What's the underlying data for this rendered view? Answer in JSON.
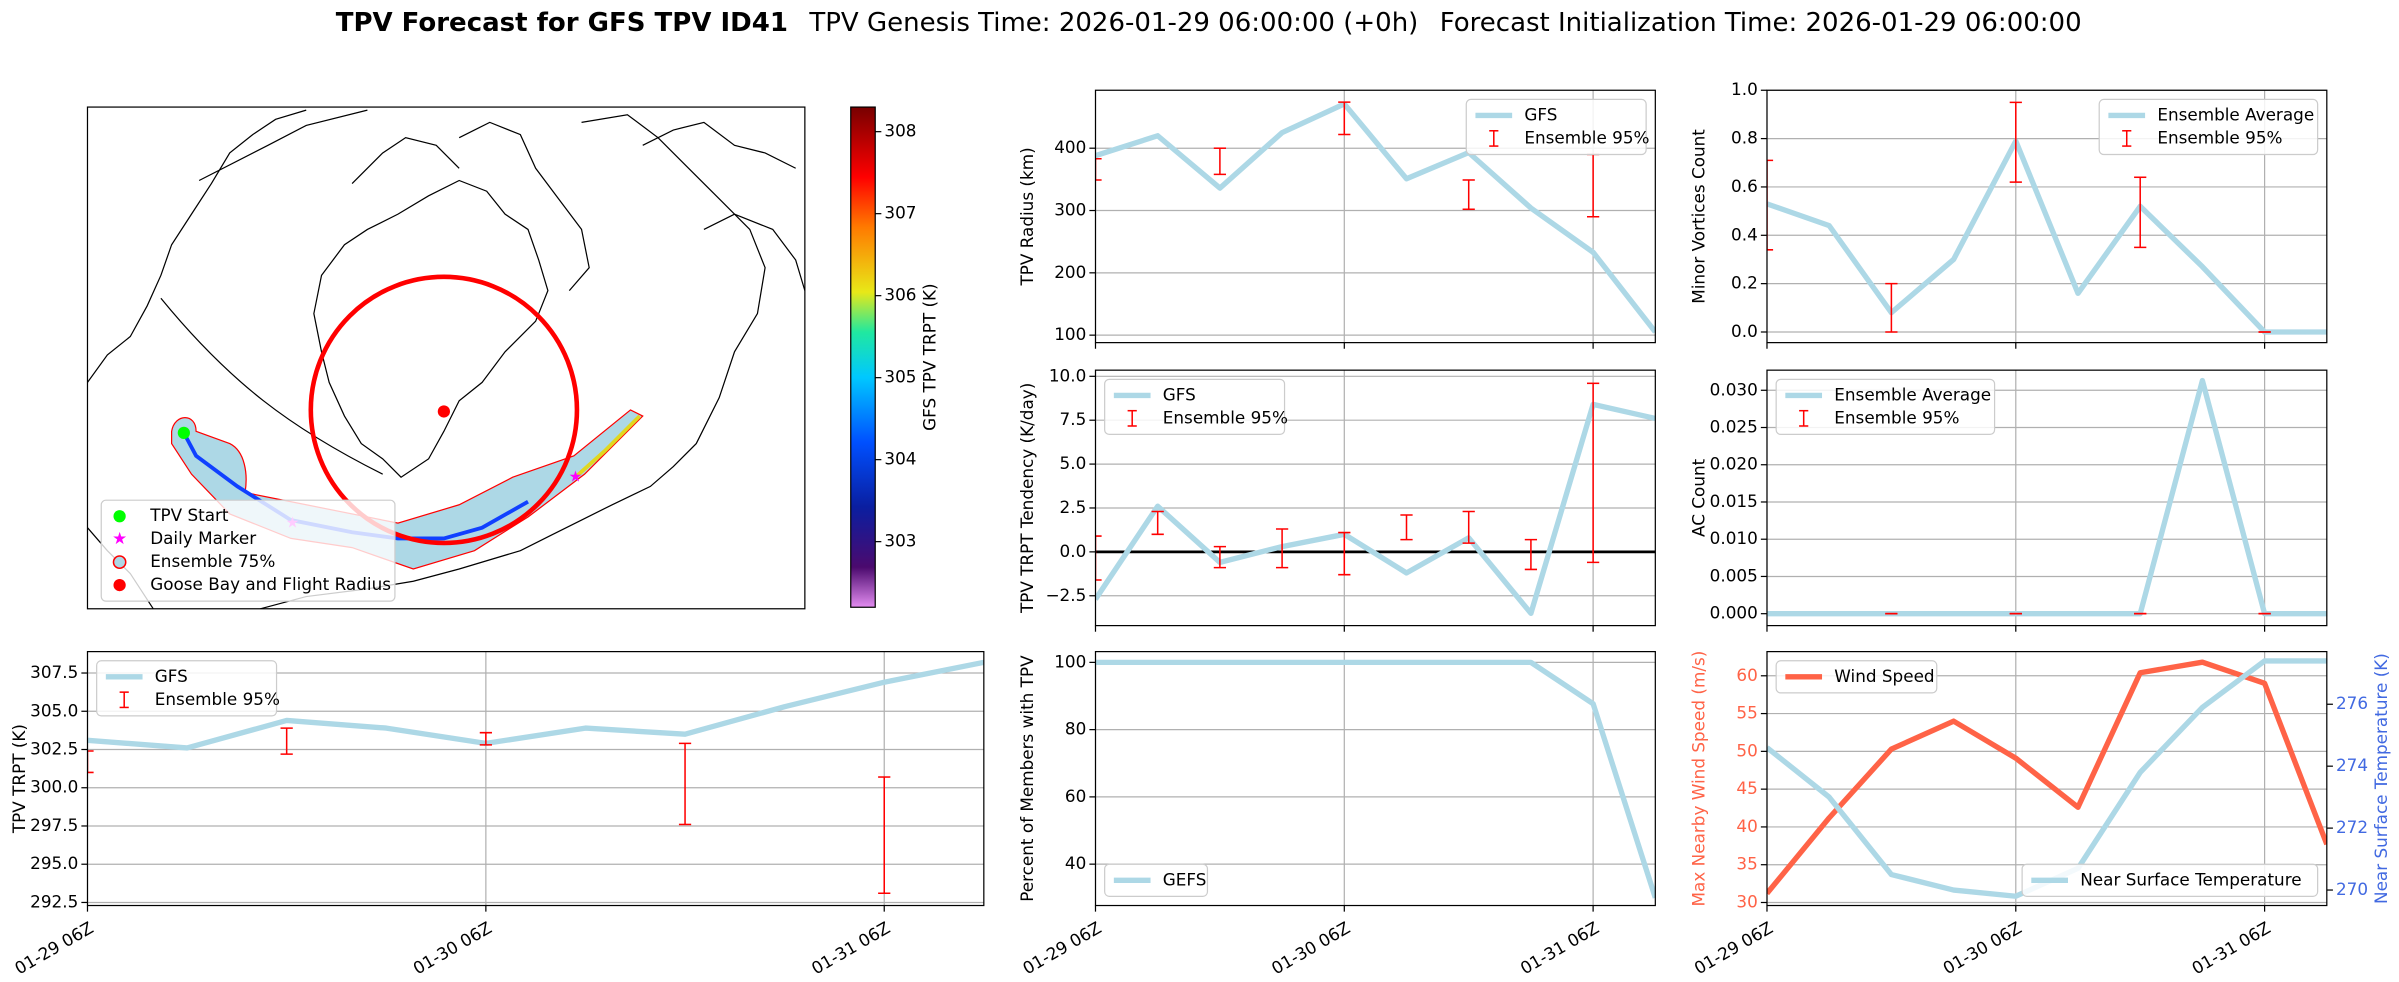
{
  "suptitle": {
    "bold": "TPV Forecast for GFS TPV ID41",
    "genesis": "TPV Genesis Time: 2026-01-29 06:00:00 (+0h)",
    "init": "Forecast Initialization Time: 2026-01-29 06:00:00"
  },
  "chart_data": [
    {
      "type": "map",
      "colorbar": {
        "label": "GFS TPV TRPT (K)",
        "lim": [
          302.2,
          308.3
        ],
        "ticks": [
          303,
          304,
          305,
          306,
          307,
          308
        ]
      },
      "legend": "lower left",
      "legend_items": [
        {
          "name": "TPV Start",
          "color": "#00ff00"
        },
        {
          "name": "Daily Marker",
          "color": "#ff00ff"
        },
        {
          "name": "Ensemble 75%",
          "color": "#add8e6",
          "edgecolor": "#ff0000"
        },
        {
          "name": "Goose Bay and Flight Radius",
          "color": "#ff0000"
        }
      ]
    },
    {
      "type": "line",
      "ylabel": "TPV TRPT (K)",
      "categories": [
        "01-29 06Z",
        null,
        null,
        null,
        "01-30 06Z",
        null,
        null,
        null,
        "01-31 06Z",
        null
      ],
      "ylim": [
        292.3,
        308.9
      ],
      "yticks": [
        292.5,
        {
          "value": 295,
          "label": "295.0"
        },
        297.5,
        {
          "value": 300,
          "label": "300.0"
        },
        302.5,
        {
          "value": 305,
          "label": "305.0"
        },
        307.5
      ],
      "grid": true,
      "legend": "upper left",
      "series": [
        {
          "name": "GFS",
          "color": "#add8e6",
          "values": [
            303.1,
            302.6,
            304.4,
            303.9,
            302.9,
            303.9,
            303.5,
            305.3,
            306.9,
            308.2
          ]
        }
      ],
      "errorbars": {
        "name": "Ensemble 95%",
        "color": "#ff0000",
        "low": [
          301.0,
          null,
          302.2,
          null,
          302.8,
          null,
          297.6,
          null,
          293.1,
          null
        ],
        "high": [
          302.4,
          null,
          303.9,
          null,
          303.6,
          null,
          302.9,
          null,
          300.7,
          null
        ]
      }
    },
    {
      "type": "line",
      "ylabel": "TPV Radius (km)",
      "ylim": [
        88,
        493
      ],
      "yticks": [
        100,
        200,
        300,
        400
      ],
      "grid": true,
      "legend": "upper right",
      "series": [
        {
          "name": "GFS",
          "color": "#add8e6",
          "values": [
            388,
            420,
            336,
            425,
            471,
            351,
            393,
            304,
            233,
            105
          ]
        }
      ],
      "errorbars": {
        "name": "Ensemble 95%",
        "color": "#ff0000",
        "low": [
          349,
          null,
          358,
          null,
          422,
          null,
          302,
          null,
          290,
          null
        ],
        "high": [
          383,
          null,
          400,
          null,
          474,
          null,
          349,
          null,
          390,
          null
        ]
      }
    },
    {
      "type": "line",
      "ylabel": "TPV TRPT Tendency (K/day)",
      "ylim": [
        -4.2,
        10.35
      ],
      "yticks": [
        {
          "value": -2.5,
          "label": "−2.5"
        },
        {
          "value": 0,
          "label": "0.0"
        },
        2.5,
        {
          "value": 5,
          "label": "5.0"
        },
        7.5,
        {
          "value": 10,
          "label": "10.0"
        }
      ],
      "grid": true,
      "legend": "upper left",
      "hline": 0,
      "series": [
        {
          "name": "GFS",
          "color": "#add8e6",
          "values": [
            -2.7,
            2.6,
            -0.6,
            0.3,
            1.0,
            -1.2,
            0.8,
            -3.5,
            8.4,
            7.6
          ]
        }
      ],
      "errorbars": {
        "name": "Ensemble 95%",
        "color": "#ff0000",
        "low": [
          -1.6,
          1.0,
          -0.9,
          -0.9,
          -1.3,
          0.7,
          0.5,
          -1.0,
          -0.6,
          null
        ],
        "high": [
          0.9,
          2.3,
          0.3,
          1.3,
          1.1,
          2.1,
          2.3,
          0.7,
          9.6,
          null
        ]
      }
    },
    {
      "type": "line",
      "ylabel": "Percent of Members with TPV",
      "categories": [
        "01-29 06Z",
        null,
        null,
        null,
        "01-30 06Z",
        null,
        null,
        null,
        "01-31 06Z",
        null
      ],
      "ylim": [
        27.7,
        103.2
      ],
      "yticks": [
        40,
        60,
        80,
        100
      ],
      "grid": true,
      "legend": "lower left",
      "series": [
        {
          "name": "GEFS",
          "color": "#add8e6",
          "values": [
            100,
            100,
            100,
            100,
            100,
            100,
            100,
            100,
            87.7,
            30
          ]
        }
      ]
    },
    {
      "type": "line",
      "ylabel": "Minor Vortices Count",
      "ylim": [
        -0.044,
        1.0
      ],
      "yticks": [
        {
          "value": 0,
          "label": "0.0"
        },
        0.2,
        0.4,
        0.6,
        0.8,
        {
          "value": 1,
          "label": "1.0"
        }
      ],
      "grid": true,
      "legend": "upper right",
      "series": [
        {
          "name": "Ensemble Average",
          "color": "#add8e6",
          "values": [
            0.53,
            0.44,
            0.08,
            0.3,
            0.79,
            0.16,
            0.52,
            0.27,
            0,
            0
          ]
        }
      ],
      "errorbars": {
        "name": "Ensemble 95%",
        "color": "#ff0000",
        "low": [
          0.34,
          null,
          0,
          null,
          0.62,
          null,
          0.35,
          null,
          0,
          null
        ],
        "high": [
          0.71,
          null,
          0.2,
          null,
          0.95,
          null,
          0.64,
          null,
          0,
          null
        ]
      }
    },
    {
      "type": "line",
      "ylabel": "AC Count",
      "ylim": [
        -0.0016,
        0.0327
      ],
      "yticks": [
        {
          "value": 0,
          "label": "0.000"
        },
        0.005,
        {
          "value": 0.01,
          "label": "0.010"
        },
        0.015,
        {
          "value": 0.02,
          "label": "0.020"
        },
        0.025,
        {
          "value": 0.03,
          "label": "0.030"
        }
      ],
      "grid": true,
      "legend": "upper left",
      "series": [
        {
          "name": "Ensemble Average",
          "color": "#add8e6",
          "values": [
            0,
            0,
            0,
            0,
            0,
            0,
            0,
            0.0313,
            0,
            0
          ]
        }
      ],
      "errorbars": {
        "name": "Ensemble 95%",
        "color": "#ff0000",
        "low": [
          null,
          null,
          0,
          null,
          0,
          null,
          0,
          null,
          0,
          null
        ],
        "high": [
          null,
          null,
          0,
          null,
          0,
          null,
          0,
          null,
          0,
          null
        ]
      }
    },
    {
      "type": "line",
      "ylabel": "Max Nearby Wind Speed (m/s)",
      "ylabel_color": "#ff6347",
      "y2label": "Near Surface Temperature (K)",
      "y2label_color": "#4169e1",
      "categories": [
        "01-29 06Z",
        null,
        null,
        null,
        "01-30 06Z",
        null,
        null,
        null,
        "01-31 06Z",
        null
      ],
      "ylim": [
        29.6,
        63.2
      ],
      "yticks": [
        30,
        35,
        40,
        45,
        50,
        55,
        60
      ],
      "y2lim": [
        269.5,
        277.7
      ],
      "y2ticks": [
        270,
        272,
        274,
        276
      ],
      "grid": true,
      "series": [
        {
          "name": "Wind Speed",
          "color": "#ff6347",
          "legend": "upper left",
          "values": [
            31.2,
            41.2,
            50.3,
            54.0,
            49.1,
            42.6,
            60.4,
            61.8,
            59.0,
            37.7
          ]
        },
        {
          "name": "Near Surface Temperature",
          "color": "#add8e6",
          "axis": "y2",
          "legend": "lower right",
          "values": [
            274.6,
            273.0,
            270.5,
            270.0,
            269.8,
            270.7,
            273.8,
            275.9,
            277.4,
            277.4
          ]
        }
      ]
    }
  ]
}
